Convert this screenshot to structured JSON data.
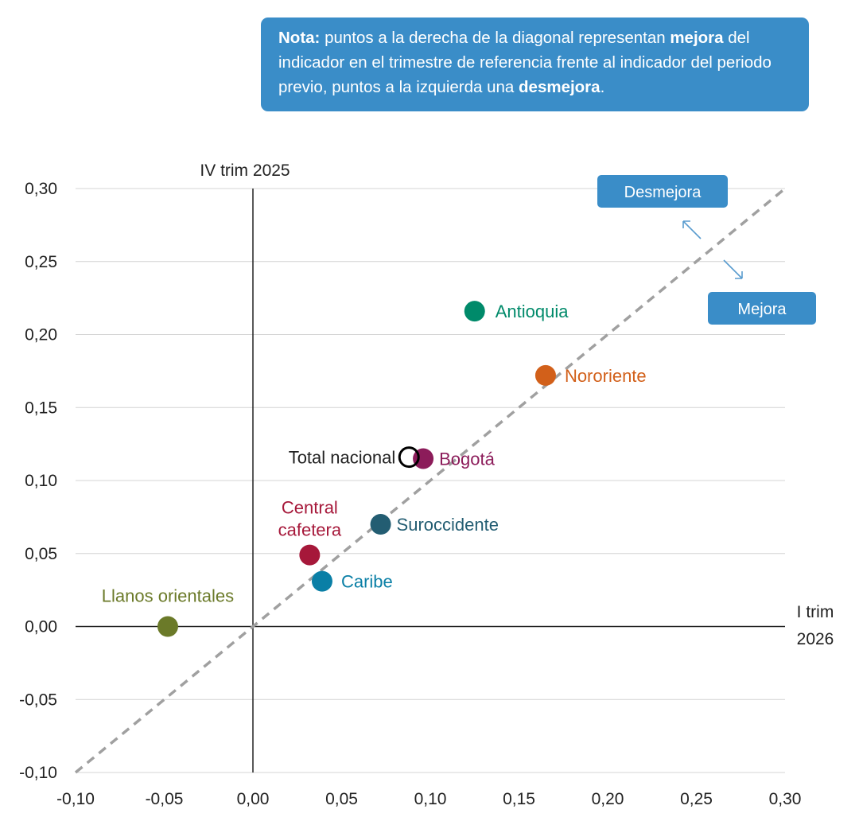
{
  "note": {
    "label": "Nota:",
    "part1": " puntos a la derecha de la diagonal representan ",
    "bold1": "mejora",
    "part2": " del indicador en el trimestre de referencia frente al indicador del periodo previo, puntos a la izquierda una ",
    "bold2": "desmejora",
    "part3": "."
  },
  "colors": {
    "note_bg": "#3a8dc8",
    "diagonal": "#a0a0a0",
    "grid": "#d4d4d4",
    "axis": "#222222"
  },
  "chart_data": {
    "type": "scatter",
    "xlabel": "I trim 2026",
    "xlabel_lines": [
      "I trim",
      "2026"
    ],
    "ylabel": "IV trim 2025",
    "xlim": [
      -0.1,
      0.3
    ],
    "ylim": [
      -0.1,
      0.3
    ],
    "xticks": [
      -0.1,
      -0.05,
      0.0,
      0.05,
      0.1,
      0.15,
      0.2,
      0.25,
      0.3
    ],
    "yticks": [
      -0.1,
      -0.05,
      0.0,
      0.05,
      0.1,
      0.15,
      0.2,
      0.25,
      0.3
    ],
    "xtick_labels": [
      "-0,10",
      "-0,05",
      "0,00",
      "0,05",
      "0,10",
      "0,15",
      "0,20",
      "0,25",
      "0,30"
    ],
    "ytick_labels": [
      "-0,10",
      "-0,05",
      "0,00",
      "0,05",
      "0,10",
      "0,15",
      "0,20",
      "0,25",
      "0,30"
    ],
    "grid": "horizontal",
    "diagonal": "y = x, dashed",
    "annotations": {
      "up": "Desmejora",
      "down": "Mejora"
    },
    "points": [
      {
        "name": "Antioquia",
        "x": 0.125,
        "y": 0.216,
        "color": "#008a6a",
        "hollow": false
      },
      {
        "name": "Nororiente",
        "x": 0.165,
        "y": 0.172,
        "color": "#d2601a",
        "hollow": false
      },
      {
        "name": "Bogotá",
        "x": 0.096,
        "y": 0.115,
        "color": "#8c1c5a",
        "hollow": false
      },
      {
        "name": "Total nacional",
        "x": 0.088,
        "y": 0.116,
        "color": "#000000",
        "hollow": true
      },
      {
        "name": "Suroccidente",
        "x": 0.072,
        "y": 0.07,
        "color": "#235d72",
        "hollow": false
      },
      {
        "name": "Central cafetera",
        "x": 0.032,
        "y": 0.049,
        "color": "#a6183a",
        "hollow": false
      },
      {
        "name": "Caribe",
        "x": 0.039,
        "y": 0.031,
        "color": "#0a7fa6",
        "hollow": false
      },
      {
        "name": "Llanos orientales",
        "x": -0.048,
        "y": 0.0,
        "color": "#6b7a29",
        "hollow": false
      }
    ]
  }
}
